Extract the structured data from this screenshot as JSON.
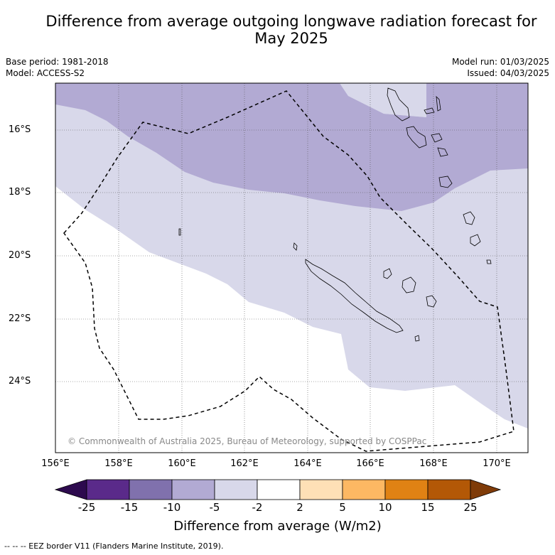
{
  "title_line1": "Difference from average outgoing longwave radiation forecast for",
  "title_line2": "May 2025",
  "meta": {
    "base_period": "Base period: 1981-2018",
    "model": "Model: ACCESS-S2",
    "model_run": "Model run: 01/03/2025",
    "issued": "Issued: 04/03/2025"
  },
  "copyright": "© Commonwealth of Australia 2025, Bureau of Meteorology, supported by COSPPac",
  "y_ticks": [
    "16°S",
    "18°S",
    "20°S",
    "22°S",
    "24°S"
  ],
  "x_ticks": [
    "156°E",
    "158°E",
    "160°E",
    "162°E",
    "164°E",
    "166°E",
    "168°E",
    "170°E"
  ],
  "colorbar": {
    "label": "Difference from average (W/m2)",
    "ticks": [
      "-25",
      "-15",
      "-10",
      "-5",
      "-2",
      "2",
      "5",
      "10",
      "15",
      "25"
    ],
    "colors": [
      "#2d0a4e",
      "#5a2a8a",
      "#8071ad",
      "#b2aad3",
      "#d8d8ea",
      "#ffffff",
      "#fee0b6",
      "#fdb863",
      "#e08214",
      "#b35806",
      "#7f3b08"
    ]
  },
  "footer": "--  --  -- EEZ border V11 (Flanders Marine Institute, 2019).",
  "colors": {
    "minus5_to_minus10": "#b2aad3",
    "minus2_to_minus5": "#d8d8ea",
    "neutral": "#ffffff",
    "grid": "#555555"
  }
}
